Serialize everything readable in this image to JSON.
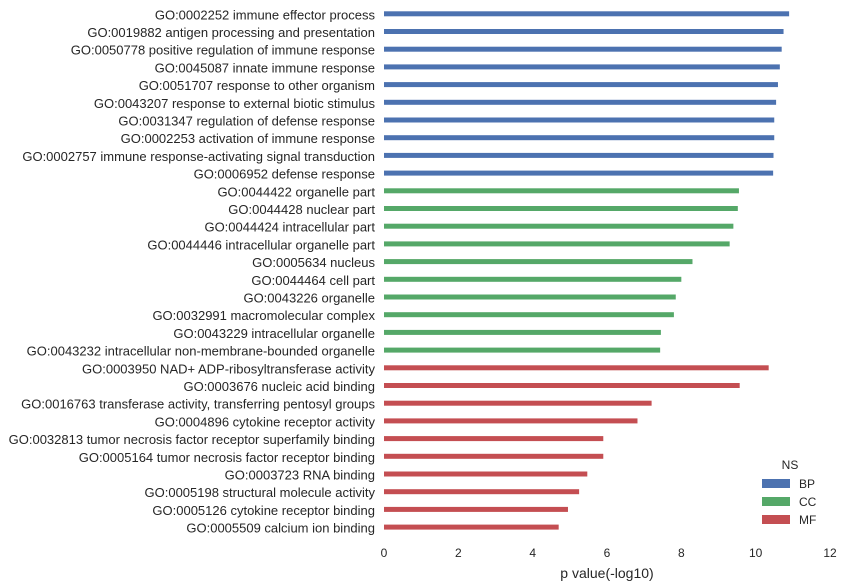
{
  "chart_data": {
    "type": "bar",
    "orientation": "horizontal",
    "xlabel": "p value(-log10)",
    "xlim": [
      0,
      12
    ],
    "xticks": [
      "0",
      "2",
      "4",
      "6",
      "8",
      "10",
      "12"
    ],
    "grid": false,
    "legend": {
      "title": "NS",
      "placement": "bottom-right",
      "entries": [
        {
          "name": "BP",
          "color": "#4c72b0"
        },
        {
          "name": "CC",
          "color": "#55a868"
        },
        {
          "name": "MF",
          "color": "#c44e52"
        }
      ]
    },
    "categories": [
      "GO:0002252 immune effector process",
      "GO:0019882 antigen processing and presentation",
      "GO:0050778 positive regulation of immune response",
      "GO:0045087 innate immune response",
      "GO:0051707 response to other organism",
      "GO:0043207 response to external biotic stimulus",
      "GO:0031347 regulation of defense response",
      "GO:0002253 activation of immune response",
      "GO:0002757 immune response-activating signal transduction",
      "GO:0006952 defense response",
      "GO:0044422 organelle part",
      "GO:0044428 nuclear part",
      "GO:0044424 intracellular part",
      "GO:0044446 intracellular organelle part",
      "GO:0005634 nucleus",
      "GO:0044464 cell part",
      "GO:0043226 organelle",
      "GO:0032991 macromolecular complex",
      "GO:0043229 intracellular organelle",
      "GO:0043232 intracellular non-membrane-bounded organelle",
      "GO:0003950 NAD+ ADP-ribosyltransferase activity",
      "GO:0003676 nucleic acid binding",
      "GO:0016763 transferase activity, transferring pentosyl groups",
      "GO:0004896 cytokine receptor activity",
      "GO:0032813 tumor necrosis factor receptor superfamily binding",
      "GO:0005164 tumor necrosis factor receptor binding",
      "GO:0003723 RNA binding",
      "GO:0005198 structural molecule activity",
      "GO:0005126 cytokine receptor binding",
      "GO:0005509 calcium ion binding"
    ],
    "values": [
      10.9,
      10.75,
      10.7,
      10.65,
      10.6,
      10.55,
      10.5,
      10.5,
      10.48,
      10.47,
      9.55,
      9.52,
      9.4,
      9.3,
      8.3,
      8.0,
      7.85,
      7.8,
      7.45,
      7.43,
      10.35,
      9.57,
      7.2,
      6.82,
      5.9,
      5.9,
      5.47,
      5.25,
      4.95,
      4.7
    ],
    "groups": [
      "BP",
      "BP",
      "BP",
      "BP",
      "BP",
      "BP",
      "BP",
      "BP",
      "BP",
      "BP",
      "CC",
      "CC",
      "CC",
      "CC",
      "CC",
      "CC",
      "CC",
      "CC",
      "CC",
      "CC",
      "MF",
      "MF",
      "MF",
      "MF",
      "MF",
      "MF",
      "MF",
      "MF",
      "MF",
      "MF"
    ]
  }
}
